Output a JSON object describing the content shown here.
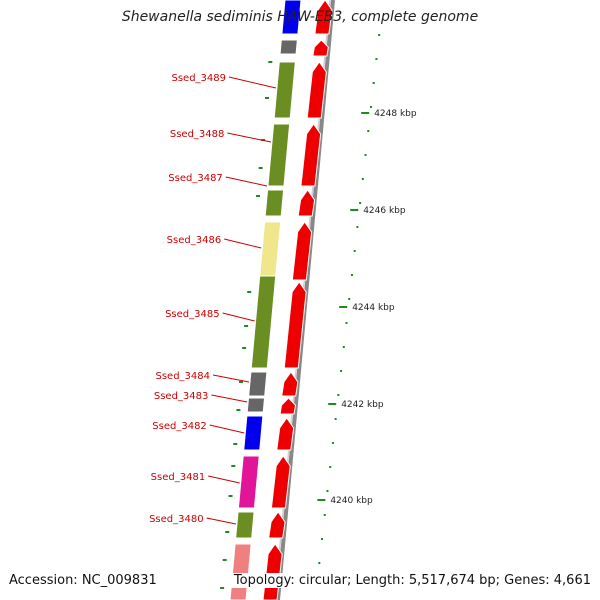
{
  "title": "Shewanella sediminis HAW-EB3, complete genome",
  "accession": "Accession: NC_009831",
  "summary": "Topology: circular; Length: 5,517,674 bp; Genes: 4,661",
  "colors": {
    "olive": "#6b8e23",
    "khaki": "#f0e68c",
    "gray": "#666666",
    "blue": "#0000ee",
    "magenta": "#e0159a",
    "pink": "#f08080",
    "cds": "#ee0000",
    "ruler": "#1f8a1f",
    "label": "#cc0000"
  },
  "genes": [
    {
      "id": "Ssed_3489",
      "label": "Ssed_3489"
    },
    {
      "id": "Ssed_3488",
      "label": "Ssed_3488"
    },
    {
      "id": "Ssed_3487",
      "label": "Ssed_3487"
    },
    {
      "id": "Ssed_3486",
      "label": "Ssed_3486"
    },
    {
      "id": "Ssed_3485",
      "label": "Ssed_3485"
    },
    {
      "id": "Ssed_3484",
      "label": "Ssed_3484"
    },
    {
      "id": "Ssed_3483",
      "label": "Ssed_3483"
    },
    {
      "id": "Ssed_3482",
      "label": "Ssed_3482"
    },
    {
      "id": "Ssed_3481",
      "label": "Ssed_3481"
    },
    {
      "id": "Ssed_3480",
      "label": "Ssed_3480"
    }
  ],
  "scale_ticks": [
    "4248 kbp",
    "4246 kbp",
    "4244 kbp",
    "4242 kbp",
    "4240 kbp"
  ]
}
